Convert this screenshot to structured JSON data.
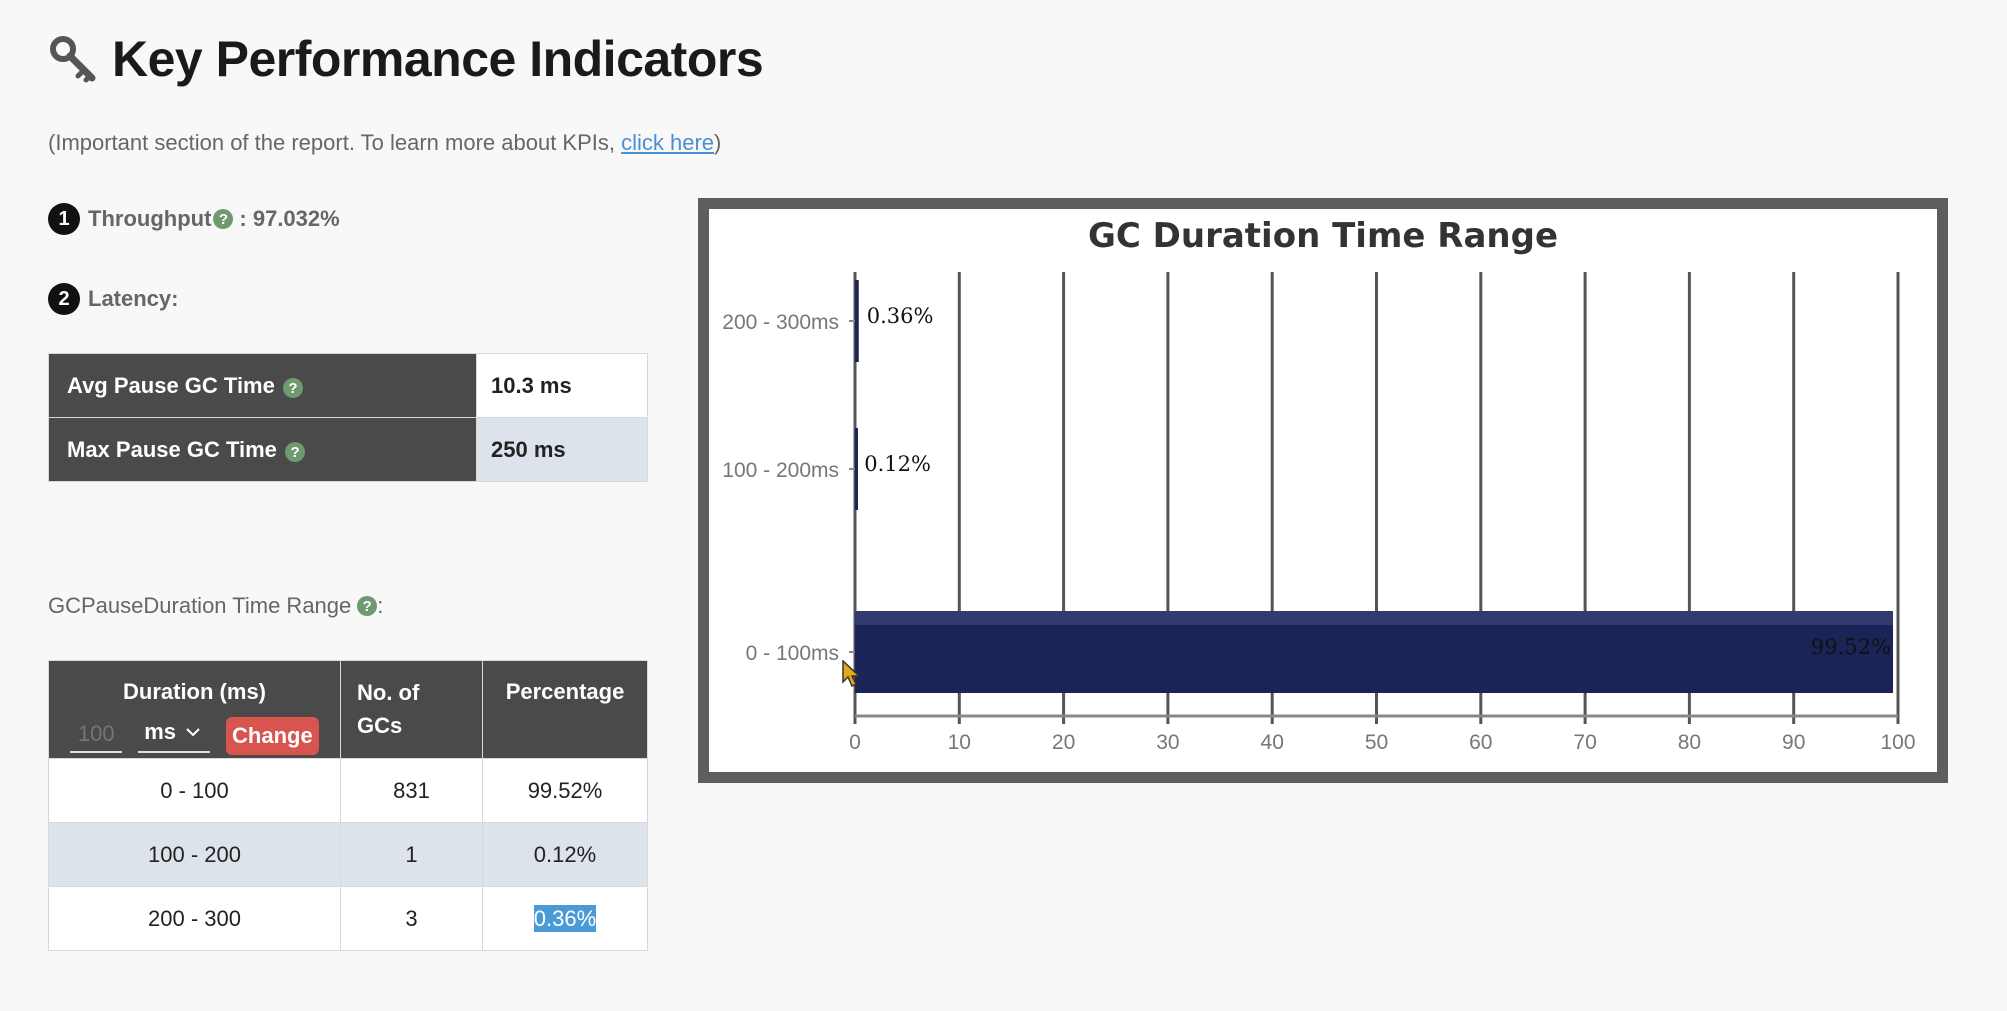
{
  "header": {
    "title": "Key Performance Indicators",
    "subtitle_prefix": "(Important section of the report. To learn more about KPIs, ",
    "subtitle_link": "click here",
    "subtitle_suffix": ")"
  },
  "throughput": {
    "number": "1",
    "label": "Throughput",
    "value_text": ": 97.032%"
  },
  "latency": {
    "number": "2",
    "label": "Latency:",
    "rows": [
      {
        "label": "Avg Pause GC Time",
        "value": "10.3 ms"
      },
      {
        "label": "Max Pause GC Time",
        "value": "250 ms"
      }
    ]
  },
  "range_section": {
    "label": "GCPauseDuration Time Range",
    "suffix": ":"
  },
  "duration_table": {
    "headers": {
      "duration": "Duration (ms)",
      "no_of_gcs_line1": "No. of",
      "no_of_gcs_line2": "GCs",
      "percentage": "Percentage"
    },
    "controls": {
      "input_placeholder": "100",
      "unit_selected": "ms",
      "change_label": "Change"
    },
    "rows": [
      {
        "duration": "0 - 100",
        "gcs": "831",
        "percentage": "99.52%"
      },
      {
        "duration": "100 - 200",
        "gcs": "1",
        "percentage": "0.12%"
      },
      {
        "duration": "200 - 300",
        "gcs": "3",
        "percentage": "0.36%"
      }
    ]
  },
  "chart_data": {
    "type": "bar",
    "orientation": "horizontal",
    "title": "GC Duration Time Range",
    "categories": [
      "200 - 300ms",
      "100 - 200ms",
      "0 - 100ms"
    ],
    "values": [
      0.36,
      0.12,
      99.52
    ],
    "value_labels": [
      "0.36%",
      "0.12%",
      "99.52%"
    ],
    "xlim": [
      0,
      100
    ],
    "xticks": [
      0,
      10,
      20,
      30,
      40,
      50,
      60,
      70,
      80,
      90,
      100
    ],
    "grid": true,
    "bar_color": "#1b2457",
    "grid_color": "#555555"
  }
}
